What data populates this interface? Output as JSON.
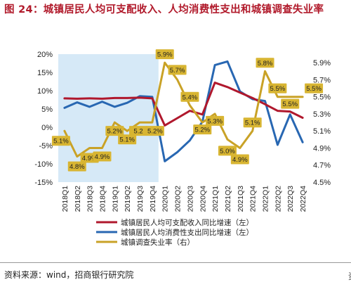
{
  "figure": {
    "title": "图 24：城镇居民人均可支配收入、人均消费性支出和城镇调查失业率",
    "source": "资料来源：wind，招商银行研究院",
    "edge_glyph": "资"
  },
  "colors": {
    "title": "#b11a2b",
    "income": "#b0182d",
    "consumption": "#2867b2",
    "unemployment": "#c9a227",
    "label_fill": "#d8b532",
    "shade": "#d6e9f7"
  },
  "chart_data": {
    "type": "line",
    "categories": [
      "2018Q1",
      "2018Q2",
      "2018Q3",
      "2018Q4",
      "2019Q1",
      "2019Q2",
      "2019Q3",
      "2019Q4",
      "2020Q1",
      "2020Q2",
      "2020Q3",
      "2020Q4",
      "2021Q1",
      "2021Q2",
      "2021Q3",
      "2021Q4",
      "2022Q1",
      "2022Q2",
      "2022Q3",
      "2022Q4"
    ],
    "y_left": {
      "min": -15,
      "max": 20,
      "step": 5,
      "ticks": [
        "20%",
        "15%",
        "10%",
        "5%",
        "0%",
        "-5%",
        "-10%",
        "-15%"
      ]
    },
    "y_right": {
      "min": 4.5,
      "max": 6.0,
      "step": 0.2,
      "ticks": [
        "5.9%",
        "5.7%",
        "5.5%",
        "5.3%",
        "5.1%",
        "4.9%",
        "4.7%",
        "4.5%"
      ]
    },
    "shaded_range": [
      "2018Q1",
      "2019Q4"
    ],
    "series": [
      {
        "name": "城镇居民人均可支配收入同比增速（左）",
        "axis": "left",
        "color": "#b0182d",
        "values": [
          7.9,
          7.8,
          7.9,
          7.8,
          8.0,
          8.0,
          8.1,
          7.9,
          0.5,
          2.5,
          4.5,
          3.5,
          12.2,
          11.0,
          9.5,
          8.0,
          6.3,
          4.5,
          4.3,
          2.6
        ]
      },
      {
        "name": "城镇居民人均消费性支出同比增速（左）",
        "axis": "left",
        "color": "#2867b2",
        "values": [
          5.3,
          6.8,
          5.6,
          7.0,
          5.6,
          6.7,
          8.5,
          8.3,
          -9.3,
          -6.8,
          -3.6,
          1.5,
          17.0,
          18.0,
          9.8,
          7.7,
          7.2,
          -4.8,
          3.5,
          -4.1
        ]
      },
      {
        "name": "城镇调查失业率（右）",
        "axis": "right",
        "color": "#c9a227",
        "values": [
          5.1,
          4.8,
          4.9,
          4.9,
          5.2,
          5.1,
          5.2,
          5.2,
          5.9,
          5.7,
          5.4,
          5.2,
          5.3,
          5.0,
          4.9,
          5.1,
          5.8,
          5.5,
          5.5,
          5.5
        ]
      }
    ],
    "data_labels": [
      "5.1%",
      "4.8%",
      "4.9%",
      "4.9%",
      "5.2%",
      "5.1%",
      "5.2",
      "5.2%",
      "5.9%",
      "5.7%",
      "5.4%",
      "5.2%",
      "5.3%",
      "5.0%",
      "4.9%",
      "5.1%",
      "5.8%",
      "5.5%",
      "5.5%",
      "5.5%"
    ],
    "legend_position": "bottom"
  }
}
